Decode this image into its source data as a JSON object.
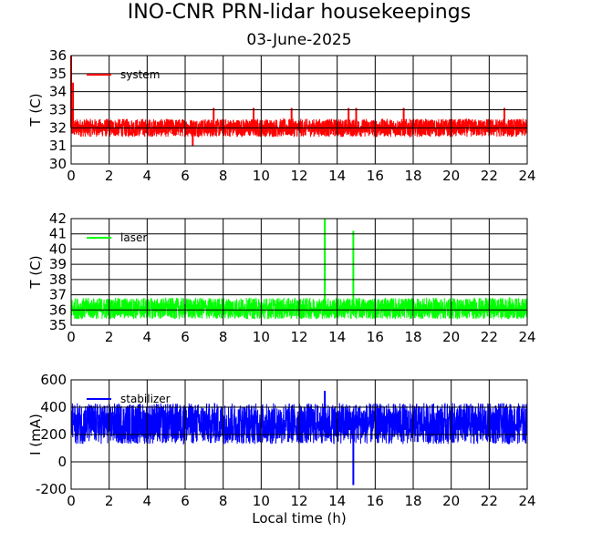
{
  "title": "INO-CNR PRN-lidar housekeepings",
  "subtitle": "03-June-2025",
  "xlabel": "Local time (h)",
  "colors": {
    "system": "#ff0000",
    "laser": "#00ff00",
    "stabilizer": "#0000ff",
    "grid": "#000000"
  },
  "chart_data": [
    {
      "type": "line",
      "name": "system",
      "ylabel": "T (C)",
      "xlim": [
        0,
        24
      ],
      "ylim": [
        30,
        36
      ],
      "x_ticks": [
        0,
        2,
        4,
        6,
        8,
        10,
        12,
        14,
        16,
        18,
        20,
        22,
        24
      ],
      "y_ticks": [
        30,
        31,
        32,
        33,
        34,
        35,
        36
      ],
      "grid": true,
      "legend": "top-left",
      "series": [
        {
          "name": "system",
          "baseline": 32,
          "band": [
            31.5,
            32.5
          ],
          "values": [
            [
              0,
              36
            ],
            [
              0.05,
              33.1
            ],
            [
              0.1,
              34.5
            ],
            [
              6.4,
              31
            ],
            [
              7.5,
              33.1
            ],
            [
              9.6,
              33.1
            ],
            [
              11.6,
              33.1
            ],
            [
              14.6,
              33.1
            ],
            [
              15.0,
              33.1
            ],
            [
              17.5,
              33.1
            ],
            [
              22.8,
              33.1
            ],
            [
              24,
              32
            ]
          ]
        }
      ]
    },
    {
      "type": "line",
      "name": "laser",
      "ylabel": "T (C)",
      "xlim": [
        0,
        24
      ],
      "ylim": [
        35,
        42
      ],
      "x_ticks": [
        0,
        2,
        4,
        6,
        8,
        10,
        12,
        14,
        16,
        18,
        20,
        22,
        24
      ],
      "y_ticks": [
        35,
        36,
        37,
        38,
        39,
        40,
        41,
        42
      ],
      "grid": true,
      "legend": "top-left",
      "series": [
        {
          "name": "laser",
          "baseline": 36,
          "band": [
            35.4,
            36.8
          ],
          "values": [
            [
              0,
              36
            ],
            [
              13.35,
              42
            ],
            [
              14.85,
              41.2
            ],
            [
              24,
              36
            ]
          ]
        }
      ]
    },
    {
      "type": "line",
      "name": "stabilizer",
      "ylabel": "I (mA)",
      "xlim": [
        0,
        24
      ],
      "ylim": [
        -200,
        600
      ],
      "x_ticks": [
        0,
        2,
        4,
        6,
        8,
        10,
        12,
        14,
        16,
        18,
        20,
        22,
        24
      ],
      "y_ticks": [
        -200,
        0,
        200,
        400,
        600
      ],
      "grid": true,
      "legend": "top-left",
      "series": [
        {
          "name": "stabilizer",
          "baseline": 280,
          "band": [
            130,
            430
          ],
          "values": [
            [
              0,
              280
            ],
            [
              13.35,
              520
            ],
            [
              14.85,
              -170
            ],
            [
              24,
              280
            ]
          ]
        }
      ]
    }
  ]
}
